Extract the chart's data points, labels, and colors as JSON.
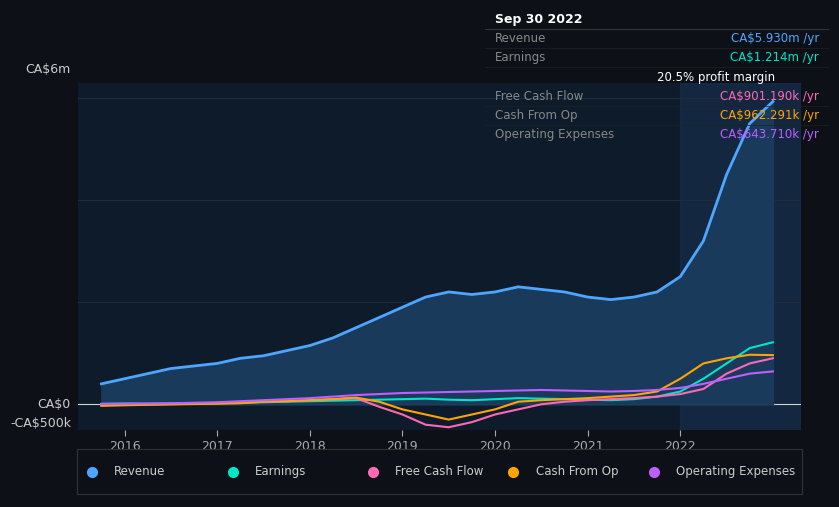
{
  "bg_color": "#0d1117",
  "plot_bg_color": "#0d1b2a",
  "grid_color": "#1e2d3d",
  "title_box_color": "#000000",
  "y_label_top": "CA$6m",
  "y_label_zero": "CA$0",
  "y_label_bottom": "-CA$500k",
  "x_ticks": [
    2016,
    2017,
    2018,
    2019,
    2020,
    2021,
    2022
  ],
  "y_max": 6000000,
  "y_min": -500000,
  "highlight_x_start": 2022.0,
  "tooltip": {
    "date": "Sep 30 2022",
    "revenue_label": "Revenue",
    "revenue_value": "CA$5.930m /yr",
    "revenue_color": "#4da6ff",
    "earnings_label": "Earnings",
    "earnings_value": "CA$1.214m /yr",
    "earnings_color": "#00e5c8",
    "margin_text": "20.5% profit margin",
    "fcf_label": "Free Cash Flow",
    "fcf_value": "CA$901.190k /yr",
    "fcf_color": "#ff69b4",
    "cashop_label": "Cash From Op",
    "cashop_value": "CA$962.291k /yr",
    "cashop_color": "#ffa500",
    "opex_label": "Operating Expenses",
    "opex_value": "CA$643.710k /yr",
    "opex_color": "#bf5fff"
  },
  "legend": [
    {
      "label": "Revenue",
      "color": "#4da6ff"
    },
    {
      "label": "Earnings",
      "color": "#00e5c8"
    },
    {
      "label": "Free Cash Flow",
      "color": "#ff69b4"
    },
    {
      "label": "Cash From Op",
      "color": "#ffa500"
    },
    {
      "label": "Operating Expenses",
      "color": "#bf5fff"
    }
  ],
  "revenue": {
    "color": "#4da6ff",
    "fill": "#1a3a5c",
    "t": [
      2015.75,
      2016.0,
      2016.25,
      2016.5,
      2016.75,
      2017.0,
      2017.25,
      2017.5,
      2017.75,
      2018.0,
      2018.25,
      2018.5,
      2018.75,
      2019.0,
      2019.25,
      2019.5,
      2019.75,
      2020.0,
      2020.25,
      2020.5,
      2020.75,
      2021.0,
      2021.25,
      2021.5,
      2021.75,
      2022.0,
      2022.25,
      2022.5,
      2022.75,
      2023.0
    ],
    "v": [
      400000,
      500000,
      600000,
      700000,
      750000,
      800000,
      900000,
      950000,
      1050000,
      1150000,
      1300000,
      1500000,
      1700000,
      1900000,
      2100000,
      2200000,
      2150000,
      2200000,
      2300000,
      2250000,
      2200000,
      2100000,
      2050000,
      2100000,
      2200000,
      2500000,
      3200000,
      4500000,
      5500000,
      5930000
    ]
  },
  "earnings": {
    "color": "#00e5c8",
    "t": [
      2015.75,
      2016.0,
      2016.25,
      2016.5,
      2016.75,
      2017.0,
      2017.25,
      2017.5,
      2017.75,
      2018.0,
      2018.25,
      2018.5,
      2018.75,
      2019.0,
      2019.25,
      2019.5,
      2019.75,
      2020.0,
      2020.25,
      2020.5,
      2020.75,
      2021.0,
      2021.25,
      2021.5,
      2021.75,
      2022.0,
      2022.25,
      2022.5,
      2022.75,
      2023.0
    ],
    "v": [
      10000,
      15000,
      10000,
      15000,
      20000,
      25000,
      30000,
      40000,
      50000,
      60000,
      70000,
      80000,
      90000,
      100000,
      110000,
      90000,
      80000,
      100000,
      120000,
      110000,
      100000,
      90000,
      80000,
      100000,
      150000,
      250000,
      500000,
      800000,
      1100000,
      1214000
    ]
  },
  "free_cash_flow": {
    "color": "#ff69b4",
    "t": [
      2015.75,
      2016.0,
      2016.25,
      2016.5,
      2016.75,
      2017.0,
      2017.25,
      2017.5,
      2017.75,
      2018.0,
      2018.25,
      2018.5,
      2018.75,
      2019.0,
      2019.25,
      2019.5,
      2019.75,
      2020.0,
      2020.25,
      2020.5,
      2020.75,
      2021.0,
      2021.25,
      2021.5,
      2021.75,
      2022.0,
      2022.25,
      2022.5,
      2022.75,
      2023.0
    ],
    "v": [
      -20000,
      -10000,
      -5000,
      0,
      10000,
      20000,
      30000,
      50000,
      60000,
      80000,
      100000,
      120000,
      -50000,
      -200000,
      -400000,
      -450000,
      -350000,
      -200000,
      -100000,
      0,
      50000,
      80000,
      100000,
      120000,
      150000,
      200000,
      300000,
      600000,
      800000,
      901190
    ]
  },
  "cash_from_op": {
    "color": "#ffa500",
    "t": [
      2015.75,
      2016.0,
      2016.25,
      2016.5,
      2016.75,
      2017.0,
      2017.25,
      2017.5,
      2017.75,
      2018.0,
      2018.25,
      2018.5,
      2018.75,
      2019.0,
      2019.25,
      2019.5,
      2019.75,
      2020.0,
      2020.25,
      2020.5,
      2020.75,
      2021.0,
      2021.25,
      2021.5,
      2021.75,
      2022.0,
      2022.25,
      2022.5,
      2022.75,
      2023.0
    ],
    "v": [
      -30000,
      -20000,
      -10000,
      0,
      5000,
      10000,
      20000,
      50000,
      60000,
      80000,
      100000,
      130000,
      50000,
      -100000,
      -200000,
      -300000,
      -200000,
      -100000,
      50000,
      80000,
      100000,
      120000,
      150000,
      180000,
      250000,
      500000,
      800000,
      900000,
      970000,
      962291
    ]
  },
  "operating_expenses": {
    "color": "#bf5fff",
    "t": [
      2015.75,
      2016.0,
      2016.25,
      2016.5,
      2016.75,
      2017.0,
      2017.25,
      2017.5,
      2017.75,
      2018.0,
      2018.25,
      2018.5,
      2018.75,
      2019.0,
      2019.25,
      2019.5,
      2019.75,
      2020.0,
      2020.25,
      2020.5,
      2020.75,
      2021.0,
      2021.25,
      2021.5,
      2021.75,
      2022.0,
      2022.25,
      2022.5,
      2022.75,
      2023.0
    ],
    "v": [
      5000,
      10000,
      15000,
      20000,
      30000,
      40000,
      60000,
      80000,
      100000,
      120000,
      150000,
      180000,
      200000,
      220000,
      230000,
      240000,
      250000,
      260000,
      270000,
      280000,
      270000,
      260000,
      250000,
      260000,
      280000,
      320000,
      400000,
      500000,
      600000,
      643710
    ]
  }
}
